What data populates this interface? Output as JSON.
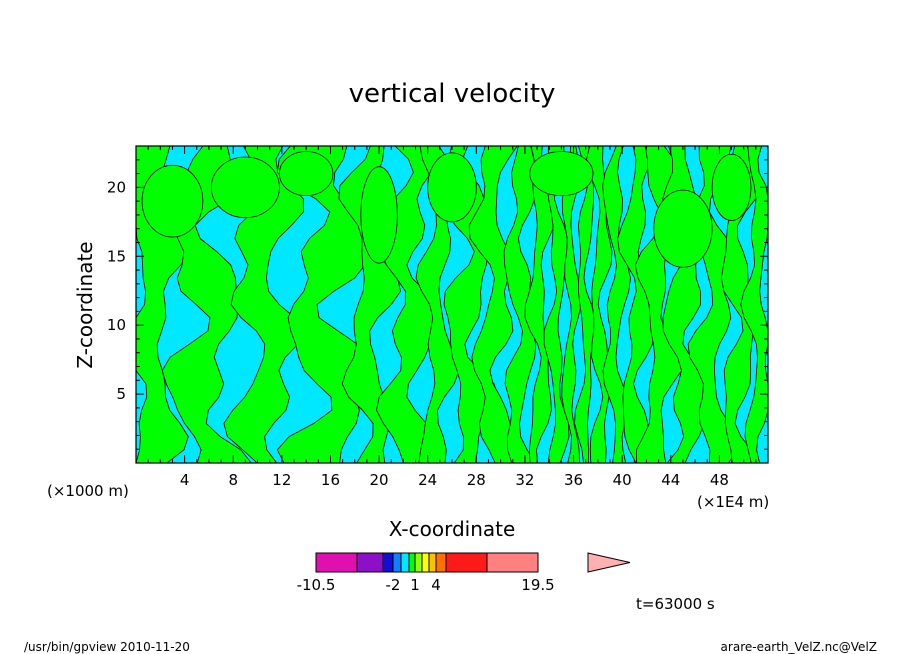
{
  "chart_data": {
    "type": "heatmap",
    "title": "vertical velocity",
    "xlabel": "X-coordinate",
    "ylabel": "Z-coordinate",
    "x_unit_left": "(×1000 m)",
    "x_unit_right": "(×1E4 m)",
    "xlim": [
      0,
      52
    ],
    "ylim": [
      0,
      23
    ],
    "xticks": [
      4,
      8,
      12,
      16,
      20,
      24,
      28,
      32,
      36,
      40,
      44,
      48
    ],
    "yticks": [
      5,
      10,
      15,
      20
    ],
    "grid": false,
    "legend": "colorbar-bottom",
    "dominant_fields": [
      "-2 to 1 (cyan)",
      "1 to 4 (green)"
    ],
    "colorbar": {
      "levels": [
        -10.5,
        -6,
        -4,
        -2,
        -1,
        0,
        1,
        2,
        3,
        4,
        8,
        12,
        19.5
      ],
      "colors": [
        "#e010b0",
        "#8c10c8",
        "#1010d0",
        "#1080ff",
        "#00e8ff",
        "#00ff00",
        "#90ff00",
        "#ffff00",
        "#ffc000",
        "#ff7000",
        "#ff1a1a",
        "#ff8080"
      ],
      "overflow_color": "#ffb0b0",
      "tick_labels": [
        "-10.5",
        "-2",
        "1",
        "4",
        "19.5"
      ],
      "tick_values": [
        -10.5,
        -2,
        1,
        4,
        19.5
      ]
    },
    "time_label": "t=63000 s"
  },
  "footer": {
    "left": "/usr/bin/gpview   2010-11-20",
    "right": "arare-earth_VelZ.nc@VelZ"
  },
  "colors": {
    "cyan": "#00e8ff",
    "green": "#00ff00"
  }
}
